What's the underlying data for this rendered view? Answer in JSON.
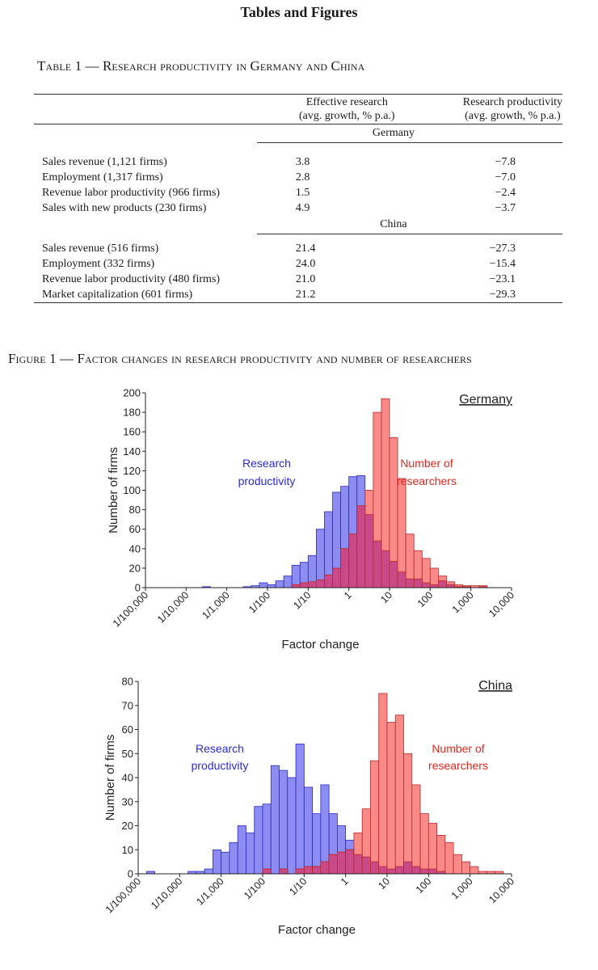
{
  "page": {
    "heading": "Tables and Figures"
  },
  "table": {
    "caption_prefix": "Table 1 — ",
    "caption_text": "Research productivity in Germany and China",
    "col_headers": [
      {
        "line1": "Effective research",
        "line2": "(avg. growth, % p.a.)"
      },
      {
        "line1": "Research productivity",
        "line2": "(avg. growth, % p.a.)"
      }
    ],
    "groups": [
      {
        "name": "Germany",
        "rows": [
          {
            "label": "Sales revenue (1,121 firms)",
            "effective": "3.8",
            "productivity": "−7.8"
          },
          {
            "label": "Employment (1,317 firms)",
            "effective": "2.8",
            "productivity": "−7.0"
          },
          {
            "label": "Revenue labor productivity (966 firms)",
            "effective": "1.5",
            "productivity": "−2.4"
          },
          {
            "label": "Sales with new products (230 firms)",
            "effective": "4.9",
            "productivity": "−3.7"
          }
        ]
      },
      {
        "name": "China",
        "rows": [
          {
            "label": "Sales revenue (516 firms)",
            "effective": "21.4",
            "productivity": "−27.3"
          },
          {
            "label": "Employment (332 firms)",
            "effective": "24.0",
            "productivity": "−15.4"
          },
          {
            "label": "Revenue labor productivity (480 firms)",
            "effective": "21.0",
            "productivity": "−23.1"
          },
          {
            "label": "Market capitalization (601 firms)",
            "effective": "21.2",
            "productivity": "−29.3"
          }
        ]
      }
    ]
  },
  "figure": {
    "caption_prefix": "Figure 1 — ",
    "caption_text": "Factor changes in research productivity and number of researchers"
  },
  "colors": {
    "blue_fill": "#8d8cf3",
    "blue_edge": "#2b2bb8",
    "red_fill": "#f98a87",
    "red_edge": "#b62a2a",
    "overlap_fill": "#c94a86",
    "blue_text": "#2a2ad6",
    "red_text": "#e0281e"
  },
  "chart_data": [
    {
      "type": "histogram",
      "panel_title": "Germany",
      "xlabel": "Factor change",
      "ylabel": "Number of firms",
      "x_scale": "log",
      "x_ticks": [
        "1/100,000",
        "1/10,000",
        "1/1,000",
        "1/100",
        "1/10",
        "1",
        "10",
        "100",
        "1,000",
        "10,000"
      ],
      "ylim": [
        0,
        200
      ],
      "y_ticks": [
        0,
        20,
        40,
        60,
        80,
        100,
        120,
        140,
        160,
        180,
        200
      ],
      "bins_per_decade": 5,
      "bin_start_log10": -5,
      "series": [
        {
          "name": "Research productivity",
          "values": [
            0,
            0,
            0,
            0,
            0,
            0,
            0,
            1,
            0,
            0,
            0,
            0,
            1,
            2,
            5,
            3,
            7,
            12,
            23,
            26,
            33,
            60,
            78,
            98,
            104,
            114,
            115,
            75,
            48,
            38,
            27,
            16,
            9,
            9,
            5,
            3,
            7,
            3,
            1,
            1,
            0,
            1,
            0,
            0,
            0
          ]
        },
        {
          "name": "Number of researchers",
          "values": [
            0,
            0,
            0,
            0,
            0,
            0,
            0,
            0,
            0,
            0,
            0,
            0,
            0,
            0,
            0,
            0,
            0,
            0,
            3,
            5,
            6,
            8,
            13,
            20,
            40,
            55,
            84,
            100,
            180,
            194,
            154,
            112,
            55,
            38,
            30,
            20,
            12,
            6,
            3,
            2,
            2,
            2,
            0,
            0,
            0
          ]
        }
      ]
    },
    {
      "type": "histogram",
      "panel_title": "China",
      "xlabel": "Factor change",
      "ylabel": "Number of firms",
      "x_scale": "log",
      "x_ticks": [
        "1/100,000",
        "1/10,000",
        "1/1,000",
        "1/100",
        "1/10",
        "1",
        "10",
        "100",
        "1,000",
        "10,000"
      ],
      "ylim": [
        0,
        80
      ],
      "y_ticks": [
        0,
        10,
        20,
        30,
        40,
        50,
        60,
        70,
        80
      ],
      "bins_per_decade": 5,
      "bin_start_log10": -5,
      "series": [
        {
          "name": "Research productivity",
          "values": [
            0,
            1,
            0,
            0,
            0,
            0,
            1,
            1,
            2,
            10,
            9,
            13,
            20,
            17,
            28,
            29,
            45,
            43,
            40,
            54,
            36,
            25,
            37,
            25,
            20,
            14,
            8,
            7,
            5,
            3,
            2,
            3,
            5,
            3,
            2,
            2,
            1,
            0,
            0,
            0,
            0,
            0,
            0,
            0,
            0
          ]
        },
        {
          "name": "Number of researchers",
          "values": [
            0,
            0,
            0,
            0,
            0,
            0,
            0,
            0,
            0,
            0,
            0,
            0,
            0,
            0,
            0,
            2,
            0,
            2,
            0,
            2,
            3,
            3,
            5,
            8,
            9,
            10,
            17,
            27,
            47,
            75,
            63,
            66,
            50,
            37,
            25,
            21,
            16,
            13,
            8,
            5,
            3,
            1,
            1,
            1,
            0
          ]
        }
      ]
    }
  ]
}
